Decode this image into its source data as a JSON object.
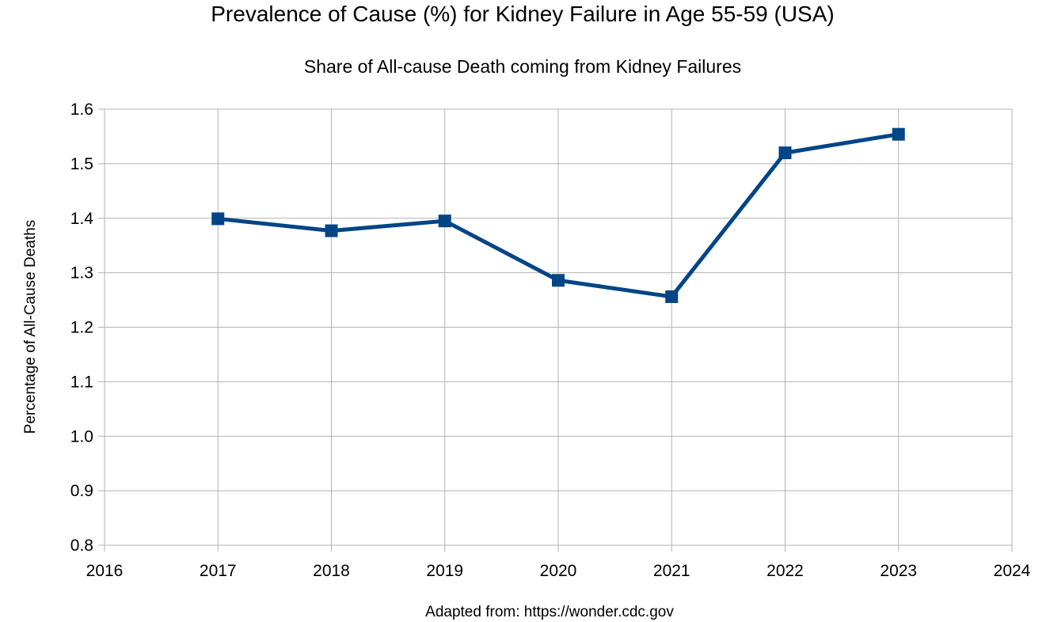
{
  "chart_data": {
    "type": "line",
    "title": "Prevalence of Cause (%) for Kidney Failure in Age 55-59 (USA)",
    "subtitle": "Share of All-cause Death coming from Kidney Failures",
    "xlabel": "Adapted from: https://wonder.cdc.gov",
    "ylabel": "Percentage of All-Cause Deaths",
    "xlim": [
      2016,
      2024
    ],
    "ylim": [
      0.8,
      1.6
    ],
    "x_ticks": [
      2016,
      2017,
      2018,
      2019,
      2020,
      2021,
      2022,
      2023,
      2024
    ],
    "y_ticks": [
      "0.8",
      "0.9",
      "1.0",
      "1.1",
      "1.2",
      "1.3",
      "1.4",
      "1.5",
      "1.6"
    ],
    "grid": true,
    "legend": "none",
    "series": [
      {
        "color": "#004586",
        "x": [
          2017,
          2018,
          2019,
          2020,
          2021,
          2022,
          2023
        ],
        "values": [
          1.399,
          1.377,
          1.395,
          1.286,
          1.256,
          1.52,
          1.554
        ]
      }
    ]
  }
}
